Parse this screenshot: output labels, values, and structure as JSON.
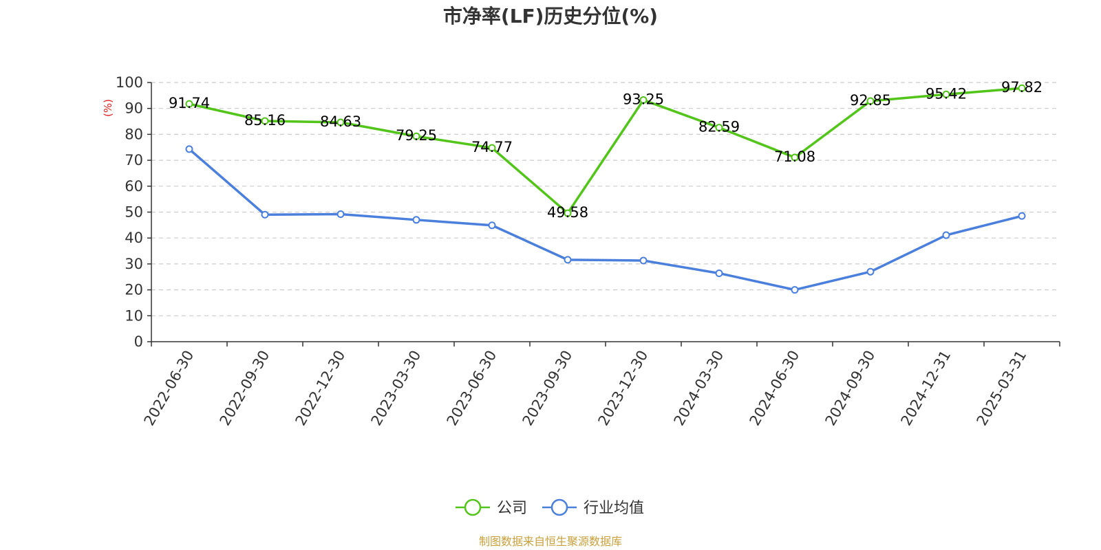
{
  "chart_data": {
    "type": "line",
    "title": "市净率(LF)历史分位(%)",
    "y_unit": "(%)",
    "x": [
      "2022-06-30",
      "2022-09-30",
      "2022-12-30",
      "2023-03-30",
      "2023-06-30",
      "2023-09-30",
      "2023-12-30",
      "2024-03-30",
      "2024-06-30",
      "2024-09-30",
      "2024-12-31",
      "2025-03-31"
    ],
    "ylim": [
      0,
      100
    ],
    "yticks": [
      "0",
      "10",
      "20",
      "30",
      "40",
      "50",
      "60",
      "70",
      "80",
      "90",
      "100"
    ],
    "grid": true,
    "legend_position": "bottom-center",
    "series": [
      {
        "name": "公司",
        "color": "#52c41a",
        "show_labels": true,
        "values": [
          91.74,
          85.16,
          84.63,
          79.25,
          74.77,
          49.58,
          93.25,
          82.59,
          71.08,
          92.85,
          95.42,
          97.82
        ],
        "labels": [
          "91.74",
          "85.16",
          "84.63",
          "79.25",
          "74.77",
          "49.58",
          "93.25",
          "82.59",
          "71.08",
          "92.85",
          "95.42",
          "97.82"
        ]
      },
      {
        "name": "行业均值",
        "color": "#4a7fdc",
        "show_labels": false,
        "values": [
          74.3,
          49.0,
          49.2,
          47.0,
          44.9,
          31.6,
          31.3,
          26.4,
          20.0,
          27.0,
          41.1,
          48.5
        ]
      }
    ]
  },
  "source": {
    "text": "制图数据来自恒生聚源数据库",
    "color": "#c8a03c"
  },
  "colors": {
    "unit_label": "#e02020",
    "axis": "#333333",
    "grid": "#cccccc"
  }
}
